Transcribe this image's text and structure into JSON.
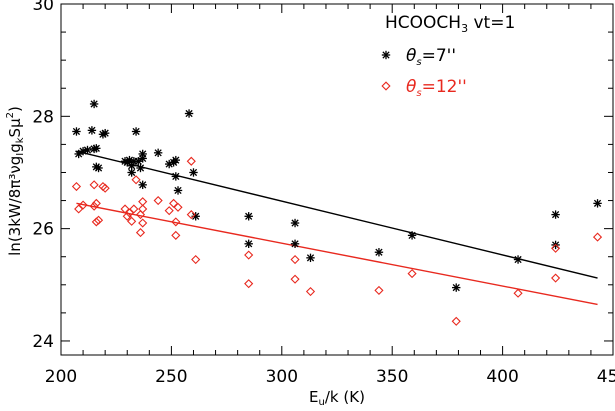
{
  "chart_data": {
    "type": "scatter",
    "xlabel": "E",
    "xlabel_sub": "u",
    "xlabel_suffix": "/k (K)",
    "ylabel": "ln(3kW/8π³νg",
    "ylabel_sub1": "I",
    "ylabel_g": "g",
    "ylabel_sub2": "k",
    "ylabel_mid": "Sμ",
    "ylabel_sup": "2",
    "ylabel_end": ")",
    "xlim": [
      200,
      450
    ],
    "ylim": [
      23.75,
      30
    ],
    "x_ticks": [
      "200",
      "250",
      "300",
      "350",
      "400",
      "450"
    ],
    "y_ticks": [
      "24",
      "26",
      "28",
      "30"
    ],
    "x_tick_values": [
      200,
      250,
      300,
      350,
      400,
      450
    ],
    "y_tick_values": [
      24,
      26,
      28,
      30
    ],
    "legend_title": "HCOOCH",
    "legend_title_sub": "3",
    "legend_title_suffix": " vt=1",
    "series": [
      {
        "name": "θs=7''",
        "label_theta": "θ",
        "label_sub": "s",
        "label_value": "=7''",
        "color": "#000000",
        "marker": "asterisk",
        "fit": [
          [
            207,
            27.38
          ],
          [
            443,
            25.12
          ]
        ],
        "points": [
          [
            207,
            27.73
          ],
          [
            208,
            27.33
          ],
          [
            210,
            27.38
          ],
          [
            212,
            27.4
          ],
          [
            214,
            27.75
          ],
          [
            215,
            28.22
          ],
          [
            215,
            27.42
          ],
          [
            216,
            27.43
          ],
          [
            216,
            27.1
          ],
          [
            217,
            27.08
          ],
          [
            219,
            27.68
          ],
          [
            220,
            27.7
          ],
          [
            229,
            27.2
          ],
          [
            230,
            27.18
          ],
          [
            231,
            27.22
          ],
          [
            232,
            27.0
          ],
          [
            232,
            27.12
          ],
          [
            233,
            27.2
          ],
          [
            234,
            27.73
          ],
          [
            235,
            27.2
          ],
          [
            236,
            27.08
          ],
          [
            237,
            27.33
          ],
          [
            237,
            27.25
          ],
          [
            237,
            26.78
          ],
          [
            244,
            27.35
          ],
          [
            249,
            27.15
          ],
          [
            251,
            27.18
          ],
          [
            252,
            26.93
          ],
          [
            252,
            27.22
          ],
          [
            253,
            26.68
          ],
          [
            258,
            28.05
          ],
          [
            260,
            27.0
          ],
          [
            261,
            26.22
          ],
          [
            285,
            26.22
          ],
          [
            285,
            25.73
          ],
          [
            306,
            26.1
          ],
          [
            306,
            25.73
          ],
          [
            313,
            25.48
          ],
          [
            344,
            25.58
          ],
          [
            359,
            25.88
          ],
          [
            379,
            24.95
          ],
          [
            407,
            25.45
          ],
          [
            424,
            26.25
          ],
          [
            424,
            25.71
          ],
          [
            443,
            26.45
          ]
        ]
      },
      {
        "name": "θs=12''",
        "label_theta": "θ",
        "label_sub": "s",
        "label_value": "=12''",
        "color": "#e8291f",
        "marker": "diamond",
        "fit": [
          [
            207,
            26.45
          ],
          [
            443,
            24.65
          ]
        ],
        "points": [
          [
            207,
            26.75
          ],
          [
            208,
            26.35
          ],
          [
            210,
            26.42
          ],
          [
            215,
            26.78
          ],
          [
            215,
            26.4
          ],
          [
            216,
            26.45
          ],
          [
            216,
            26.12
          ],
          [
            217,
            26.15
          ],
          [
            219,
            26.75
          ],
          [
            220,
            26.72
          ],
          [
            229,
            26.35
          ],
          [
            230,
            26.22
          ],
          [
            231,
            26.28
          ],
          [
            232,
            26.13
          ],
          [
            233,
            26.35
          ],
          [
            234,
            26.87
          ],
          [
            236,
            26.25
          ],
          [
            236,
            25.93
          ],
          [
            237,
            26.48
          ],
          [
            237,
            26.1
          ],
          [
            237,
            26.35
          ],
          [
            244,
            26.5
          ],
          [
            249,
            26.32
          ],
          [
            251,
            26.45
          ],
          [
            252,
            26.12
          ],
          [
            252,
            25.88
          ],
          [
            253,
            26.38
          ],
          [
            259,
            27.2
          ],
          [
            259,
            26.25
          ],
          [
            261,
            25.45
          ],
          [
            285,
            25.53
          ],
          [
            285,
            25.02
          ],
          [
            306,
            25.45
          ],
          [
            306,
            25.1
          ],
          [
            313,
            24.88
          ],
          [
            344,
            24.9
          ],
          [
            359,
            25.2
          ],
          [
            379,
            24.35
          ],
          [
            407,
            24.85
          ],
          [
            424,
            25.65
          ],
          [
            424,
            25.12
          ],
          [
            443,
            25.85
          ]
        ]
      }
    ]
  }
}
